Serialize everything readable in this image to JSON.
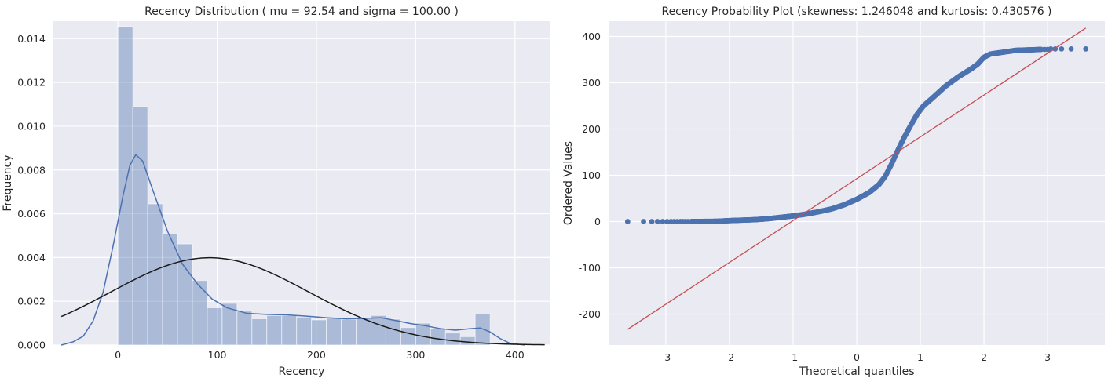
{
  "chart_data": [
    {
      "type": "bar",
      "title": "Recency Distribution ( mu = 92.54 and sigma = 100.00 )",
      "xlabel": "Recency",
      "ylabel": "Frequency",
      "xlim": [
        -65,
        435
      ],
      "ylim": [
        0,
        0.0148
      ],
      "xticks": [
        0,
        100,
        200,
        300,
        400
      ],
      "yticks": [
        0.0,
        0.002,
        0.004,
        0.006,
        0.008,
        0.01,
        0.012,
        0.014
      ],
      "bins": [
        {
          "x0": 0,
          "x1": 15,
          "value": 0.01455
        },
        {
          "x0": 15,
          "x1": 30,
          "value": 0.0109
        },
        {
          "x0": 30,
          "x1": 45,
          "value": 0.00645
        },
        {
          "x0": 45,
          "x1": 60,
          "value": 0.0051
        },
        {
          "x0": 60,
          "x1": 75,
          "value": 0.00462
        },
        {
          "x0": 75,
          "x1": 90,
          "value": 0.00295
        },
        {
          "x0": 90,
          "x1": 105,
          "value": 0.0017
        },
        {
          "x0": 105,
          "x1": 120,
          "value": 0.0019
        },
        {
          "x0": 120,
          "x1": 135,
          "value": 0.00155
        },
        {
          "x0": 135,
          "x1": 150,
          "value": 0.0012
        },
        {
          "x0": 150,
          "x1": 165,
          "value": 0.00135
        },
        {
          "x0": 165,
          "x1": 180,
          "value": 0.00135
        },
        {
          "x0": 180,
          "x1": 195,
          "value": 0.00128
        },
        {
          "x0": 195,
          "x1": 210,
          "value": 0.00115
        },
        {
          "x0": 210,
          "x1": 225,
          "value": 0.00122
        },
        {
          "x0": 225,
          "x1": 240,
          "value": 0.00118
        },
        {
          "x0": 240,
          "x1": 255,
          "value": 0.0012
        },
        {
          "x0": 255,
          "x1": 270,
          "value": 0.00135
        },
        {
          "x0": 270,
          "x1": 285,
          "value": 0.00118
        },
        {
          "x0": 285,
          "x1": 300,
          "value": 0.0008
        },
        {
          "x0": 300,
          "x1": 315,
          "value": 0.001
        },
        {
          "x0": 315,
          "x1": 330,
          "value": 0.00075
        },
        {
          "x0": 330,
          "x1": 345,
          "value": 0.00055
        },
        {
          "x0": 345,
          "x1": 360,
          "value": 0.00038
        },
        {
          "x0": 360,
          "x1": 375,
          "value": 0.00145
        }
      ],
      "series": [
        {
          "name": "kde",
          "color": "#4c72b0",
          "points": [
            [
              -57,
              0.0
            ],
            [
              -45,
              0.00015
            ],
            [
              -35,
              0.0004
            ],
            [
              -25,
              0.0011
            ],
            [
              -15,
              0.0024
            ],
            [
              -5,
              0.0045
            ],
            [
              5,
              0.0068
            ],
            [
              12,
              0.0082
            ],
            [
              18,
              0.0087
            ],
            [
              25,
              0.0084
            ],
            [
              35,
              0.0071
            ],
            [
              50,
              0.0052
            ],
            [
              65,
              0.0037
            ],
            [
              80,
              0.0028
            ],
            [
              95,
              0.0021
            ],
            [
              110,
              0.0017
            ],
            [
              130,
              0.00145
            ],
            [
              150,
              0.0014
            ],
            [
              170,
              0.00138
            ],
            [
              190,
              0.00132
            ],
            [
              210,
              0.00125
            ],
            [
              230,
              0.0012
            ],
            [
              250,
              0.00122
            ],
            [
              265,
              0.00125
            ],
            [
              280,
              0.00112
            ],
            [
              295,
              0.00098
            ],
            [
              310,
              0.00088
            ],
            [
              325,
              0.00075
            ],
            [
              340,
              0.00068
            ],
            [
              355,
              0.00075
            ],
            [
              365,
              0.00078
            ],
            [
              375,
              0.0006
            ],
            [
              385,
              0.0003
            ],
            [
              395,
              8e-05
            ],
            [
              410,
              0.0
            ]
          ]
        },
        {
          "name": "normal fit",
          "color": "#1a1a1a",
          "mu": 92.54,
          "sigma": 100.0,
          "x_range": [
            -57,
            430
          ]
        }
      ]
    },
    {
      "type": "scatter",
      "title": "Recency Probability Plot (skewness: 1.246048 and kurtosis: 0.430576 )",
      "xlabel": "Theoretical quantiles",
      "ylabel": "Ordered Values",
      "xlim": [
        -3.9,
        3.9
      ],
      "ylim": [
        -267,
        433
      ],
      "xticks": [
        -3,
        -2,
        -1,
        0,
        1,
        2,
        3
      ],
      "yticks": [
        -200,
        -100,
        0,
        100,
        200,
        300,
        400
      ],
      "fit_line": {
        "x": [
          -3.6,
          3.6
        ],
        "y": [
          -233,
          418
        ],
        "color": "#c44e52"
      },
      "points_color": "#4c72b0",
      "curve_points": [
        [
          -2.6,
          0
        ],
        [
          -2.2,
          0.5
        ],
        [
          -2.0,
          2
        ],
        [
          -1.8,
          3
        ],
        [
          -1.6,
          4
        ],
        [
          -1.4,
          6
        ],
        [
          -1.2,
          9
        ],
        [
          -1.0,
          12
        ],
        [
          -0.8,
          16
        ],
        [
          -0.6,
          21
        ],
        [
          -0.4,
          27
        ],
        [
          -0.2,
          36
        ],
        [
          0.0,
          48
        ],
        [
          0.2,
          63
        ],
        [
          0.35,
          80
        ],
        [
          0.45,
          98
        ],
        [
          0.55,
          125
        ],
        [
          0.65,
          155
        ],
        [
          0.75,
          183
        ],
        [
          0.85,
          208
        ],
        [
          0.95,
          232
        ],
        [
          1.05,
          250
        ],
        [
          1.2,
          268
        ],
        [
          1.4,
          293
        ],
        [
          1.6,
          313
        ],
        [
          1.8,
          330
        ],
        [
          1.9,
          340
        ],
        [
          2.0,
          355
        ],
        [
          2.1,
          362
        ],
        [
          2.3,
          366
        ],
        [
          2.5,
          370
        ],
        [
          2.7,
          371
        ],
        [
          2.9,
          372
        ]
      ],
      "tail_points": [
        [
          -3.6,
          0
        ],
        [
          -3.35,
          0
        ],
        [
          -3.22,
          0
        ],
        [
          -3.13,
          0
        ],
        [
          -3.05,
          0
        ],
        [
          -2.98,
          0
        ],
        [
          -2.92,
          0
        ],
        [
          -2.87,
          0
        ],
        [
          -2.82,
          0
        ],
        [
          -2.77,
          0
        ],
        [
          -2.73,
          0
        ],
        [
          -2.69,
          0
        ],
        [
          -2.65,
          0
        ],
        [
          2.95,
          372
        ],
        [
          3.0,
          372
        ],
        [
          3.05,
          373
        ],
        [
          3.12,
          373
        ],
        [
          3.22,
          373
        ],
        [
          3.37,
          373
        ],
        [
          3.6,
          373
        ]
      ]
    }
  ]
}
